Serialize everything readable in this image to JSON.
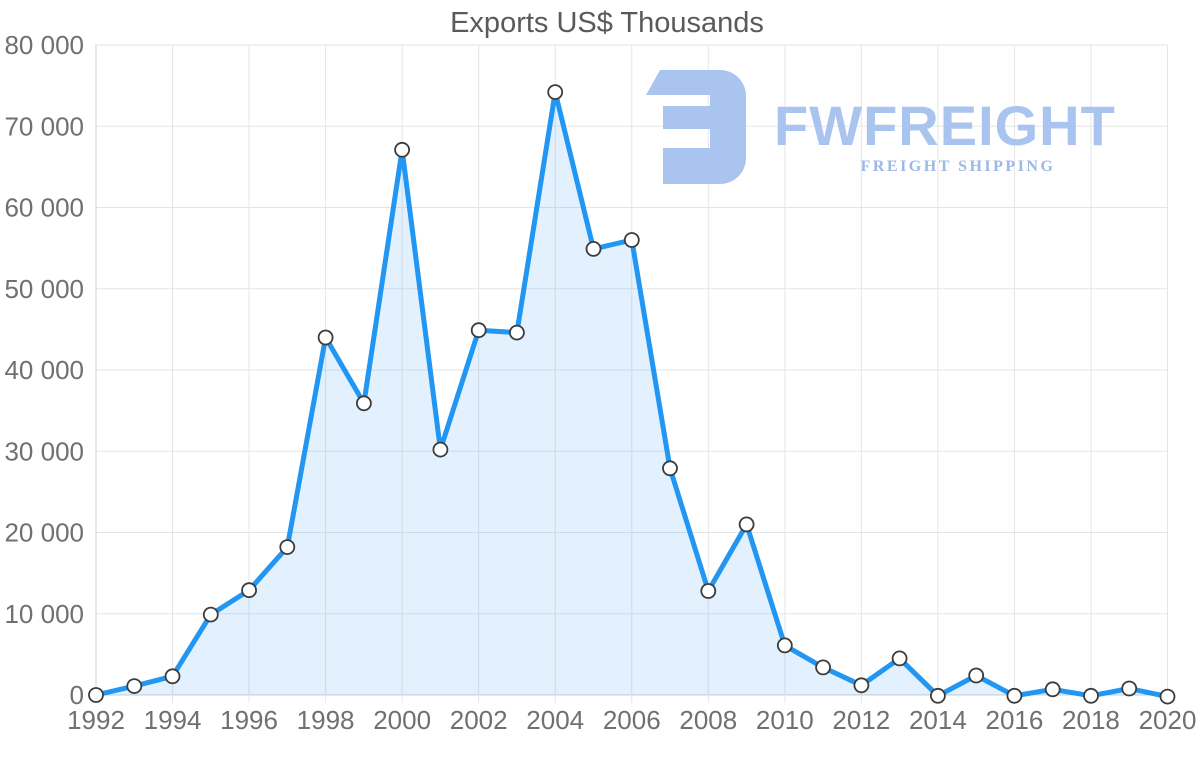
{
  "chart_data": {
    "type": "area",
    "title": "Exports US$ Thousands",
    "x": [
      1992,
      1993,
      1994,
      1995,
      1996,
      1997,
      1998,
      1999,
      2000,
      2001,
      2002,
      2003,
      2004,
      2005,
      2006,
      2007,
      2008,
      2009,
      2010,
      2011,
      2012,
      2013,
      2014,
      2015,
      2016,
      2017,
      2018,
      2019,
      2020
    ],
    "values": [
      0,
      1100,
      2300,
      9900,
      12900,
      18200,
      44000,
      35900,
      67100,
      30200,
      44900,
      44600,
      74200,
      54900,
      56000,
      27900,
      12800,
      21000,
      6100,
      3400,
      1200,
      4500,
      -100,
      2400,
      -100,
      700,
      -100,
      800,
      -200
    ],
    "x_tick_labels": [
      "1992",
      "1994",
      "1996",
      "1998",
      "2000",
      "2002",
      "2004",
      "2006",
      "2008",
      "2010",
      "2012",
      "2014",
      "2016",
      "2018",
      "2020"
    ],
    "y_tick_labels": [
      "0",
      "10 000",
      "20 000",
      "30 000",
      "40 000",
      "50 000",
      "60 000",
      "70 000",
      "80 000"
    ],
    "ylim": [
      0,
      80000
    ],
    "ytick_interval": 10000,
    "grid": true,
    "legend_position": "none",
    "line_color": "#2196f3",
    "fill_color": "rgba(33,150,243,0.13)",
    "marker_fill": "#ffffff",
    "marker_stroke": "#3c3c3c",
    "grid_color": "#e5e5e5",
    "axis_color": "#cfcfcf",
    "tick_label_color": "#707070",
    "title_color": "#5a5a5a"
  },
  "watermark": {
    "brand": "FWFREIGHT",
    "tagline": "FREIGHT SHIPPING",
    "color": "#a9c4ee"
  }
}
